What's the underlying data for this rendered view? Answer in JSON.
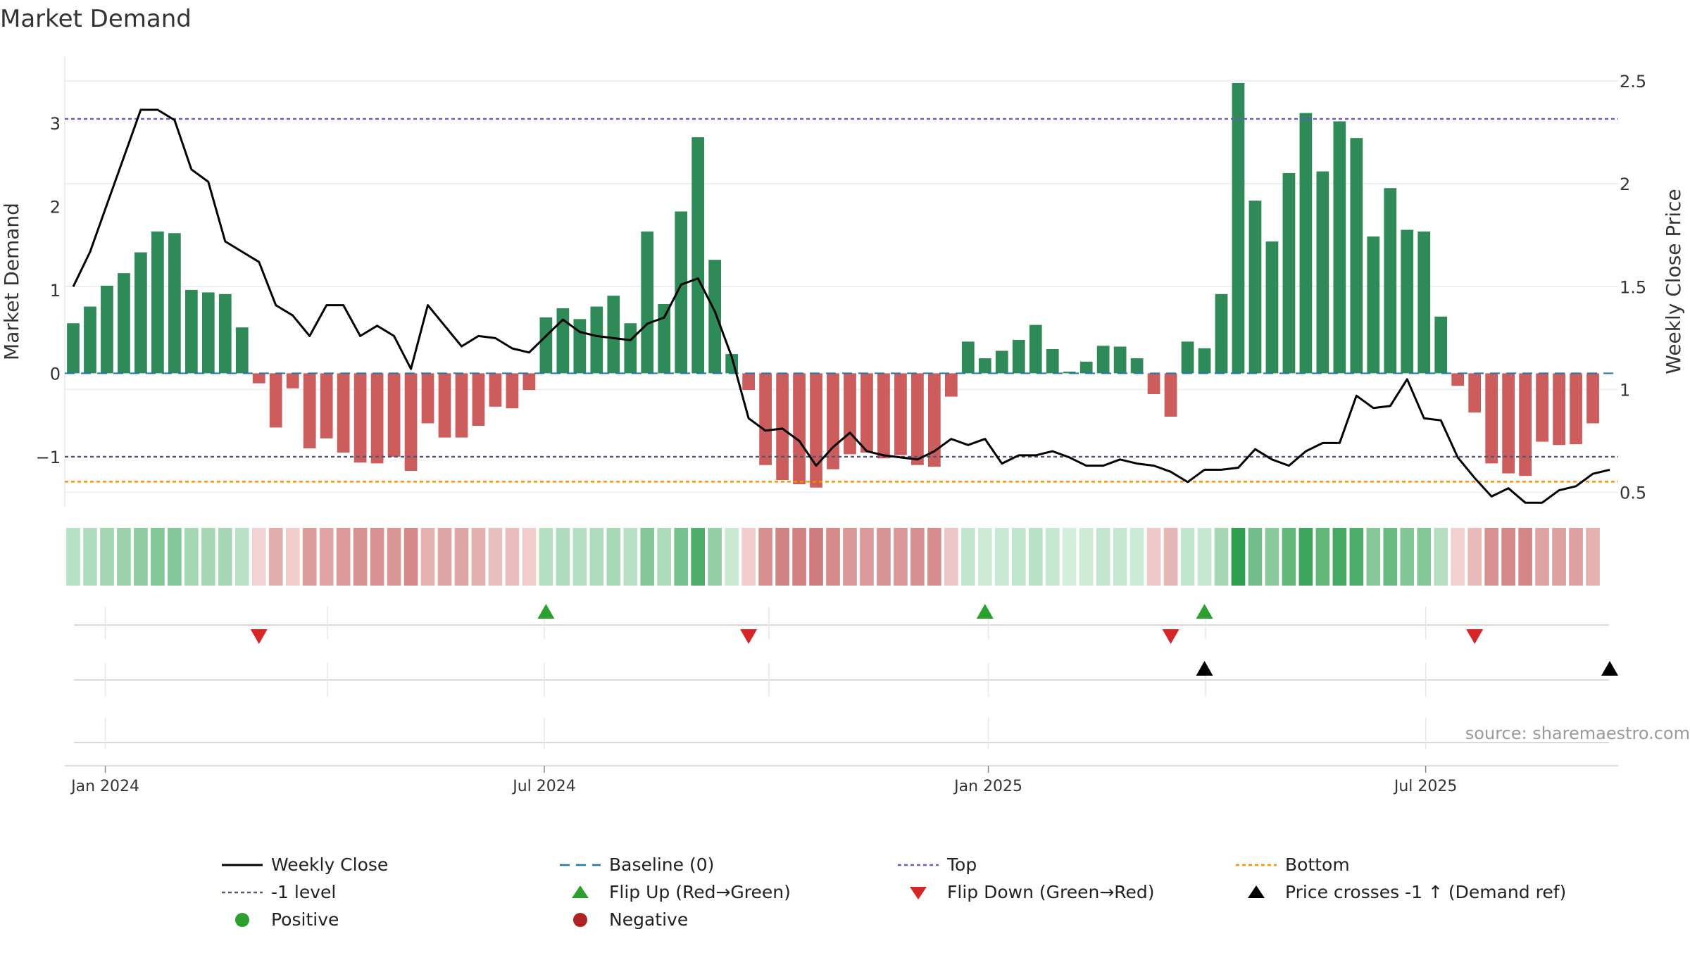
{
  "chart_data": {
    "type": "bar+line",
    "title": "Market Demand",
    "ylabel_left": "Market Demand",
    "ylabel_right": "Weekly Close Price",
    "ylim_left": [
      -1.6,
      3.8
    ],
    "ylim_right": [
      0.43,
      2.62
    ],
    "yticks_left": [
      {
        "value": 3,
        "label": "3"
      },
      {
        "value": 2,
        "label": "2"
      },
      {
        "value": 1,
        "label": "1"
      },
      {
        "value": 0,
        "label": "0"
      },
      {
        "value": -1,
        "label": "−1"
      }
    ],
    "yticks_right": [
      {
        "value": 2.5,
        "label": "2.5"
      },
      {
        "value": 2.0,
        "label": "2"
      },
      {
        "value": 1.5,
        "label": "1.5"
      },
      {
        "value": 1.0,
        "label": "1"
      },
      {
        "value": 0.5,
        "label": "0.5"
      }
    ],
    "x_weeks": 92,
    "xticks": [
      {
        "week": 2.4,
        "label": "Jan 2024"
      },
      {
        "week": 28.4,
        "label": "Jul 2024"
      },
      {
        "week": 54.7,
        "label": "Jan 2025"
      },
      {
        "week": 80.6,
        "label": "Jul 2025"
      }
    ],
    "demand": [
      0.6,
      0.8,
      1.05,
      1.2,
      1.45,
      1.7,
      1.68,
      1.0,
      0.97,
      0.95,
      0.55,
      -0.12,
      -0.65,
      -0.18,
      -0.9,
      -0.78,
      -0.95,
      -1.07,
      -1.08,
      -1.0,
      -1.17,
      -0.6,
      -0.77,
      -0.77,
      -0.63,
      -0.4,
      -0.42,
      -0.2,
      0.67,
      0.78,
      0.65,
      0.8,
      0.93,
      0.6,
      1.7,
      0.83,
      1.94,
      2.83,
      1.36,
      0.23,
      -0.2,
      -1.1,
      -1.28,
      -1.33,
      -1.37,
      -1.15,
      -0.97,
      -0.95,
      -1.02,
      -0.98,
      -1.1,
      -1.12,
      -0.28,
      0.38,
      0.18,
      0.27,
      0.4,
      0.58,
      0.29,
      0.02,
      0.14,
      0.33,
      0.32,
      0.18,
      -0.25,
      -0.52,
      0.38,
      0.3,
      0.95,
      3.48,
      2.07,
      1.58,
      2.4,
      3.12,
      2.42,
      3.02,
      2.82,
      1.64,
      2.22,
      1.72,
      1.7,
      0.68,
      -0.15,
      -0.47,
      -1.08,
      -1.2,
      -1.23,
      -0.82,
      -0.86,
      -0.85,
      -0.6
    ],
    "price": [
      1.5,
      1.67,
      1.9,
      2.13,
      2.36,
      2.36,
      2.31,
      2.07,
      2.01,
      1.72,
      1.67,
      1.62,
      1.41,
      1.36,
      1.26,
      1.41,
      1.41,
      1.26,
      1.31,
      1.26,
      1.1,
      1.41,
      1.31,
      1.21,
      1.26,
      1.25,
      1.2,
      1.18,
      1.26,
      1.34,
      1.28,
      1.26,
      1.25,
      1.24,
      1.32,
      1.35,
      1.51,
      1.54,
      1.38,
      1.16,
      0.86,
      0.8,
      0.81,
      0.75,
      0.63,
      0.72,
      0.79,
      0.7,
      0.68,
      0.67,
      0.66,
      0.7,
      0.76,
      0.73,
      0.76,
      0.64,
      0.68,
      0.68,
      0.7,
      0.67,
      0.63,
      0.63,
      0.66,
      0.64,
      0.63,
      0.6,
      0.55,
      0.61,
      0.61,
      0.62,
      0.71,
      0.66,
      0.63,
      0.7,
      0.74,
      0.74,
      0.97,
      0.91,
      0.92,
      1.05,
      0.86,
      0.85,
      0.67,
      0.57,
      0.48,
      0.52,
      0.45,
      0.45,
      0.51,
      0.53,
      0.59,
      0.61
    ],
    "top_level": 3.05,
    "bottom_level": -1.3,
    "minus_one_level": -1,
    "baseline": 0,
    "flip_up_weeks": [
      28,
      54,
      67
    ],
    "flip_down_weeks": [
      11,
      40,
      65,
      83
    ],
    "price_cross_weeks": [
      67,
      91
    ],
    "source": "source: sharemaestro.com",
    "legend": [
      {
        "label": "Weekly Close",
        "symbol": "solid-line",
        "color": "#000000"
      },
      {
        "label": "Baseline (0)",
        "symbol": "dashed-line",
        "color": "#1f77b4"
      },
      {
        "label": "Top",
        "symbol": "dotted-line",
        "color": "#6a5acd"
      },
      {
        "label": "Bottom",
        "symbol": "dotted-line",
        "color": "#ff8c00"
      },
      {
        "label": "-1 level",
        "symbol": "dotted-line",
        "color": "#555577"
      },
      {
        "label": "Flip Up (Red→Green)",
        "symbol": "triangle-up",
        "color": "#2ca02c"
      },
      {
        "label": "Flip Down (Green→Red)",
        "symbol": "triangle-down",
        "color": "#d62728"
      },
      {
        "label": "Price crosses -1 ↑ (Demand ref)",
        "symbol": "triangle-up",
        "color": "#000000"
      },
      {
        "label": "Positive",
        "symbol": "circle",
        "color": "#2ca02c"
      },
      {
        "label": "Negative",
        "symbol": "circle",
        "color": "#b22222"
      }
    ],
    "colors": {
      "positive_bar": "#2e8b57",
      "negative_bar": "#cd5c5c",
      "price_line": "#000000",
      "top_line": "#6a5acd",
      "bottom_line": "#ff8c00",
      "minus_one_line": "#555577",
      "baseline": "#1f77b4",
      "flip_up": "#2ca02c",
      "flip_down": "#d62728",
      "cross_marker": "#000000"
    }
  }
}
